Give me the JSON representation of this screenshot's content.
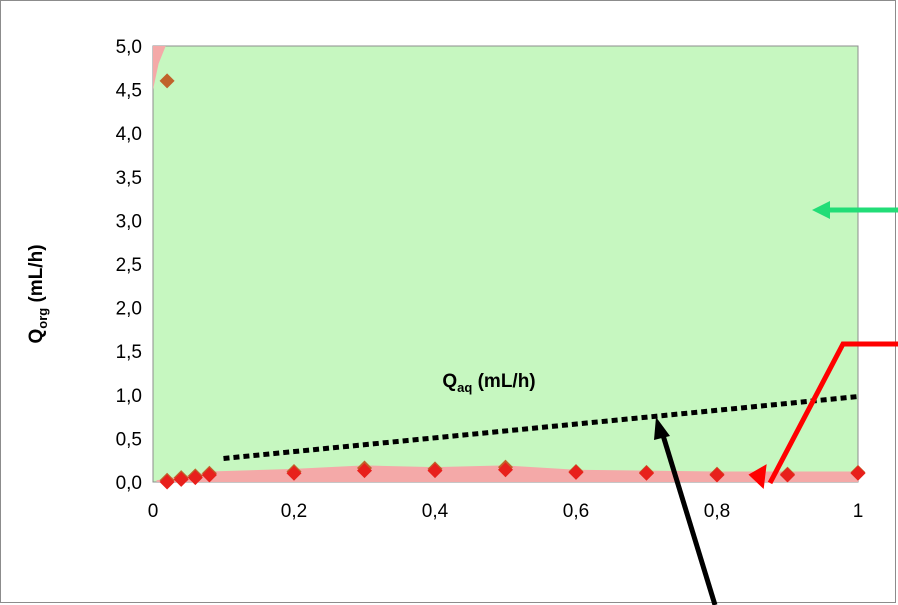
{
  "chart_data": {
    "type": "scatter",
    "title": "",
    "xlabel": {
      "main": "Q",
      "sub": "aq",
      "unit": " (mL/h)"
    },
    "ylabel": {
      "main": "Q",
      "sub": "org",
      "unit": " (mL/h)"
    },
    "xlim": [
      0,
      1
    ],
    "ylim": [
      0,
      5
    ],
    "x_ticks": [
      0,
      0.2,
      0.4,
      0.6,
      0.8,
      1
    ],
    "x_tick_labels": [
      "0",
      "0,2",
      "0,4",
      "0,6",
      "0,8",
      "1"
    ],
    "y_ticks": [
      0,
      0.5,
      1,
      1.5,
      2,
      2.5,
      3,
      3.5,
      4,
      4.5,
      5
    ],
    "y_tick_labels": [
      "0,0",
      "0,5",
      "1,0",
      "1,5",
      "2,0",
      "2,5",
      "3,0",
      "3,5",
      "4,0",
      "4,5",
      "5,0"
    ],
    "grid": false,
    "background_region": {
      "color": "#c6f7c0"
    },
    "lower_region": {
      "color": "#f4a9a8",
      "x": [
        0.005,
        0.02,
        0.04,
        0.06,
        0.08,
        0.2,
        0.3,
        0.4,
        0.5,
        0.6,
        0.7,
        0.8,
        0.9,
        1.0
      ],
      "y": [
        0.02,
        0.04,
        0.07,
        0.08,
        0.12,
        0.15,
        0.19,
        0.17,
        0.19,
        0.14,
        0.13,
        0.12,
        0.12,
        0.12
      ]
    },
    "top_region": {
      "color": "#f4a9a8",
      "x": [
        0.005,
        0.018
      ],
      "y": [
        5.0,
        5.0
      ]
    },
    "series": [
      {
        "marker": "diamond",
        "color": "#c0622b",
        "x": [
          0.02,
          0.02,
          0.04,
          0.06,
          0.08,
          0.2,
          0.3,
          0.4,
          0.5,
          0.6,
          0.7,
          0.8,
          0.9,
          1.0
        ],
        "y": [
          4.6,
          0.02,
          0.05,
          0.07,
          0.1,
          0.12,
          0.16,
          0.15,
          0.17,
          0.12,
          0.11,
          0.09,
          0.09,
          0.11
        ]
      },
      {
        "marker": "diamond",
        "color": "#e8201c",
        "x": [
          0.02,
          0.04,
          0.06,
          0.08,
          0.2,
          0.3,
          0.4,
          0.5,
          0.6,
          0.7,
          0.8,
          0.9,
          1.0
        ],
        "y": [
          0.0,
          0.03,
          0.05,
          0.08,
          0.1,
          0.13,
          0.13,
          0.14,
          0.11,
          0.1,
          0.08,
          0.08,
          0.1
        ]
      }
    ],
    "trend_line": {
      "style": "dotted",
      "color": "#000000",
      "x": [
        0.1,
        1.0
      ],
      "y": [
        0.27,
        0.98
      ]
    },
    "annotation_arrows": [
      {
        "name": "green-arrow",
        "color": "#22dd77",
        "points_at": "green region"
      },
      {
        "name": "red-arrow",
        "color": "#ff0000",
        "points_at": "red region"
      },
      {
        "name": "black-arrow",
        "color": "#000000",
        "points_at": "dotted line"
      }
    ]
  }
}
